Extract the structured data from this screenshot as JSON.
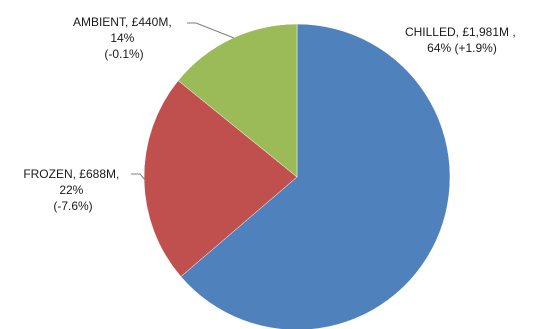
{
  "chart_data": {
    "type": "pie",
    "title": "",
    "start_angle_deg": 0,
    "direction": "clockwise",
    "colors": {
      "CHILLED": "#4F81BD",
      "FROZEN": "#C0504D",
      "AMBIENT": "#9BBB59"
    },
    "slices": [
      {
        "name": "CHILLED",
        "value": 1981,
        "percent": 64,
        "change": "+1.9%",
        "label_lines": [
          "CHILLED, £1,981M ,",
          "64% (+1.9%)"
        ]
      },
      {
        "name": "FROZEN",
        "value": 688,
        "percent": 22,
        "change": "-7.6%",
        "label_lines": [
          "FROZEN, £688M,",
          "22%",
          "(-7.6%)"
        ]
      },
      {
        "name": "AMBIENT",
        "value": 440,
        "percent": 14,
        "change": "-0.1%",
        "label_lines": [
          "AMBIENT, £440M,",
          "14%",
          "(-0.1%)"
        ]
      }
    ]
  }
}
